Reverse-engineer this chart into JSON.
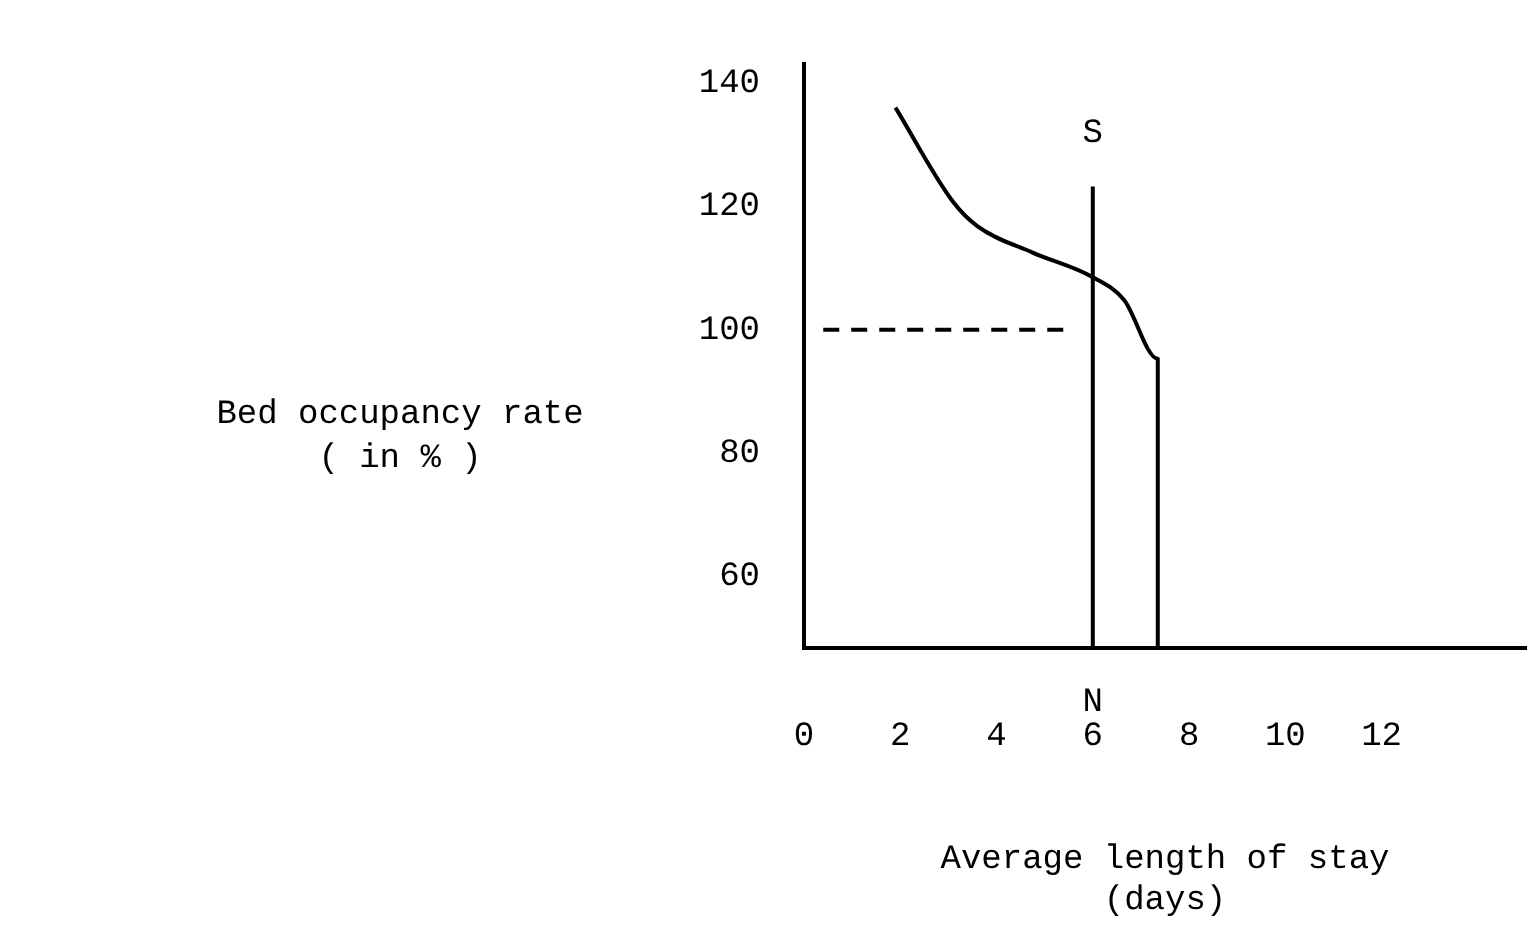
{
  "chart_data": {
    "type": "line",
    "xlabel": "Average length of stay\n(days)",
    "ylabel": "Bed occupancy rate\n( in % )",
    "xlim": [
      0,
      15
    ],
    "xticks": [
      0,
      2,
      4,
      6,
      8,
      10,
      12
    ],
    "ylim": [
      48.4,
      143
    ],
    "yticks": [
      60,
      80,
      100,
      120,
      140
    ],
    "grid": false,
    "legend": false,
    "marker": "none",
    "series": [
      {
        "color": "#000000",
        "line_style": "solid",
        "x": [
          1.9,
          3.1,
          3.6,
          4.75,
          6,
          6.65,
          7.35,
          7.35
        ],
        "values": [
          136,
          120.7,
          116.8,
          112.5,
          108.5,
          104.8,
          95.3,
          48.4
        ]
      },
      {
        "color": "#000000",
        "line_style": "solid",
        "x": [
          6,
          6
        ],
        "values": [
          48.4,
          123.2
        ]
      },
      {
        "color": "#000000",
        "line_style": "dashed",
        "x": [
          0.4,
          5.5
        ],
        "values": [
          100,
          100
        ]
      }
    ],
    "annotations": [
      "S",
      "N"
    ]
  }
}
